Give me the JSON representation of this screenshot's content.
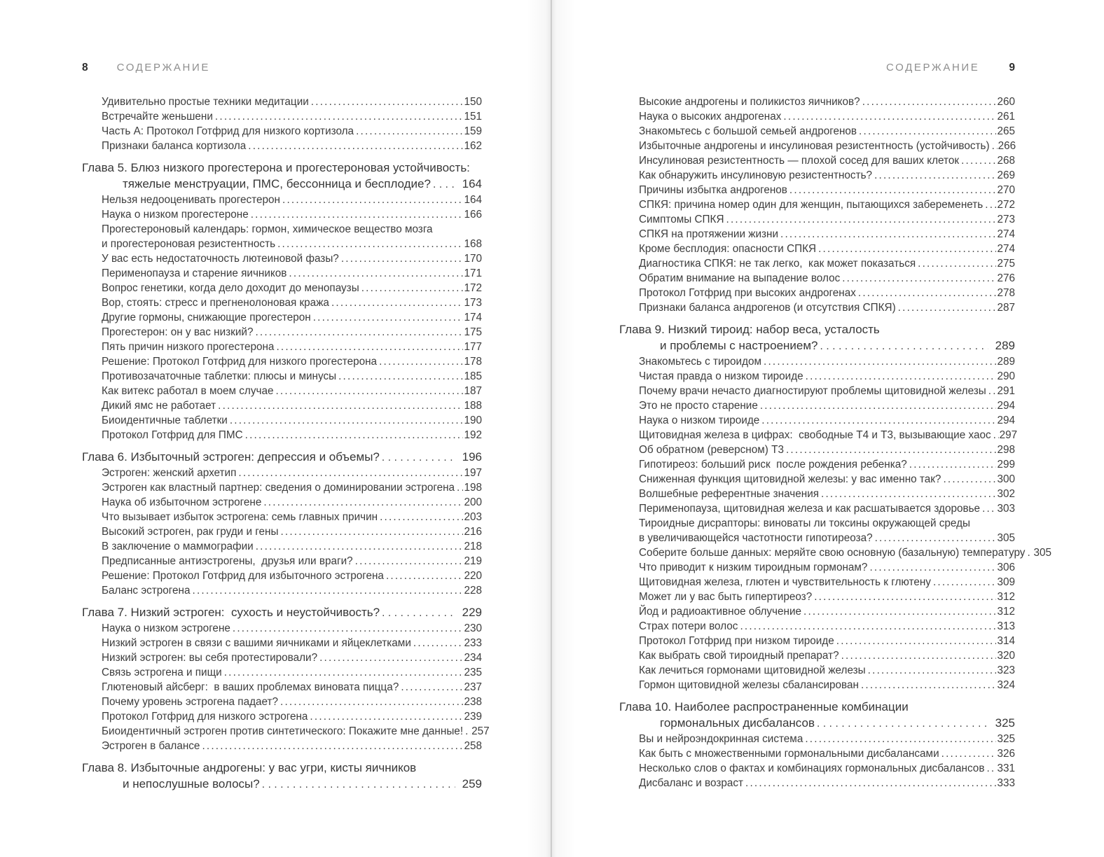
{
  "header_left": {
    "page_number": "8",
    "title": "СОДЕРЖАНИЕ"
  },
  "header_right": {
    "page_number": "9",
    "title": "СОДЕРЖАНИЕ"
  },
  "pages": [
    {
      "side": "left",
      "entries": [
        {
          "text": "Удивительно простые техники медитации",
          "page": "150",
          "style": "sub"
        },
        {
          "text": "Встречайте женьшени",
          "page": "151",
          "style": "sub"
        },
        {
          "text": "Часть А: Протокол Готфрид для низкого кортизола",
          "page": "159",
          "style": "sub"
        },
        {
          "text": "Признаки баланса кортизола",
          "page": "162",
          "style": "sub"
        },
        {
          "text": "Глава 5. Блюз низкого прогестерона и прогестероновая устойчивость:",
          "page": "",
          "style": "chapter"
        },
        {
          "text": "тяжелые менструации, ПМС, бессонница и бесплодие?",
          "page": "164",
          "style": "chaptercont"
        },
        {
          "text": "Нельзя недооценивать прогестерон",
          "page": "164",
          "style": "sub"
        },
        {
          "text": "Наука о низком прогестероне",
          "page": "166",
          "style": "sub"
        },
        {
          "text": "Прогестероновый календарь: гормон, химическое вещество мозга",
          "page": "",
          "style": "wrap"
        },
        {
          "text": "и прогестероновая резистентность",
          "page": "168",
          "style": "subcont"
        },
        {
          "text": "У вас есть недостаточность лютеиновой фазы?",
          "page": "170",
          "style": "sub"
        },
        {
          "text": "Перименопауза и старение яичников",
          "page": "171",
          "style": "sub"
        },
        {
          "text": "Вопрос генетики, когда дело доходит до менопаузы",
          "page": "172",
          "style": "sub"
        },
        {
          "text": "Вор, стоять: стресс и прегненолоновая кража",
          "page": "173",
          "style": "sub"
        },
        {
          "text": "Другие гормоны, снижающие прогестерон",
          "page": "174",
          "style": "sub"
        },
        {
          "text": "Прогестерон: он у вас низкий?",
          "page": "175",
          "style": "sub"
        },
        {
          "text": "Пять причин низкого прогестерона",
          "page": "177",
          "style": "sub"
        },
        {
          "text": "Решение: Протокол Готфрид для низкого прогестерона",
          "page": "178",
          "style": "sub"
        },
        {
          "text": "Противозачаточные таблетки: плюсы и минусы",
          "page": "185",
          "style": "sub"
        },
        {
          "text": "Как витекс работал в моем случае",
          "page": "187",
          "style": "sub"
        },
        {
          "text": "Дикий ямс не работает",
          "page": "188",
          "style": "sub"
        },
        {
          "text": "Биоидентичные таблетки",
          "page": "190",
          "style": "sub"
        },
        {
          "text": "Протокол Готфрид для ПМС",
          "page": "192",
          "style": "sub"
        },
        {
          "text": "Глава 6. Избыточный эстроген: депрессия и объемы?",
          "page": "196",
          "style": "chapterp"
        },
        {
          "text": "Эстроген: женский архетип",
          "page": "197",
          "style": "sub"
        },
        {
          "text": "Эстроген как властный партнер: сведения о доминировании эстрогена",
          "page": "198",
          "style": "sub"
        },
        {
          "text": "Наука об избыточном эстрогене",
          "page": "200",
          "style": "sub"
        },
        {
          "text": "Что вызывает избыток эстрогена: семь главных причин",
          "page": "203",
          "style": "sub"
        },
        {
          "text": "Высокий эстроген, рак груди и гены",
          "page": "216",
          "style": "sub"
        },
        {
          "text": "В заключение о маммографии",
          "page": "218",
          "style": "sub"
        },
        {
          "text": "Предписанные антиэстрогены,  друзья или враги?",
          "page": "219",
          "style": "sub"
        },
        {
          "text": "Решение: Протокол Готфрид для избыточного эстрогена",
          "page": "220",
          "style": "sub"
        },
        {
          "text": "Баланс эстрогена",
          "page": "228",
          "style": "sub"
        },
        {
          "text": "Глава 7. Низкий эстроген:  сухость и неустойчивость?",
          "page": "229",
          "style": "chapterp"
        },
        {
          "text": "Наука о низком эстрогене",
          "page": "230",
          "style": "sub"
        },
        {
          "text": "Низкий эстроген в связи с вашими яичниками и яйцеклетками",
          "page": "233",
          "style": "sub"
        },
        {
          "text": "Низкий эстроген: вы себя протестировали?",
          "page": "234",
          "style": "sub"
        },
        {
          "text": "Связь эстрогена и пищи",
          "page": "235",
          "style": "sub"
        },
        {
          "text": "Глютеновый айсберг:  в ваших проблемах виновата пицца?",
          "page": "237",
          "style": "sub"
        },
        {
          "text": "Почему уровень эстрогена падает?",
          "page": "238",
          "style": "sub"
        },
        {
          "text": "Протокол Готфрид для низкого эстрогена",
          "page": "239",
          "style": "sub"
        },
        {
          "text": "Биоидентичный эстроген против синтетического: Покажите мне данные!",
          "page": "257",
          "style": "sub"
        },
        {
          "text": "Эстроген в балансе",
          "page": "258",
          "style": "sub"
        },
        {
          "text": "Глава 8. Избыточные андрогены: у вас угри, кисты яичников",
          "page": "",
          "style": "chapter"
        },
        {
          "text": "и непослушные волосы?",
          "page": "259",
          "style": "chaptercont"
        }
      ]
    },
    {
      "side": "right",
      "entries": [
        {
          "text": "Высокие андрогены и поликистоз яичников?",
          "page": "260",
          "style": "sub"
        },
        {
          "text": "Наука о высоких андрогенах",
          "page": "261",
          "style": "sub"
        },
        {
          "text": "Знакомьтесь с большой семьей андрогенов",
          "page": "265",
          "style": "sub"
        },
        {
          "text": "Избыточные андрогены и инсулиновая резистентность (устойчивость)",
          "page": "266",
          "style": "sub"
        },
        {
          "text": "Инсулиновая резистентность — плохой сосед для ваших клеток",
          "page": "268",
          "style": "sub"
        },
        {
          "text": "Как обнаружить инсулиновую резистентность?",
          "page": "269",
          "style": "sub"
        },
        {
          "text": "Причины избытка андрогенов",
          "page": "270",
          "style": "sub"
        },
        {
          "text": "СПКЯ: причина номер один для женщин, пытающихся забеременеть",
          "page": "272",
          "style": "sub"
        },
        {
          "text": "Симптомы СПКЯ",
          "page": "273",
          "style": "sub"
        },
        {
          "text": "СПКЯ на протяжении жизни",
          "page": "274",
          "style": "sub"
        },
        {
          "text": "Кроме бесплодия: опасности СПКЯ",
          "page": "274",
          "style": "sub"
        },
        {
          "text": "Диагностика СПКЯ: не так легко,  как может показаться",
          "page": "275",
          "style": "sub"
        },
        {
          "text": "Обратим внимание на выпадение волос",
          "page": "276",
          "style": "sub"
        },
        {
          "text": "Протокол Готфрид при высоких андрогенах",
          "page": "278",
          "style": "sub"
        },
        {
          "text": "Признаки баланса андрогенов (и отсутствия СПКЯ)",
          "page": "287",
          "style": "sub"
        },
        {
          "text": "Глава 9. Низкий тироид: набор веса, усталость",
          "page": "",
          "style": "chapter"
        },
        {
          "text": "и проблемы с настроением?",
          "page": "289",
          "style": "chaptercont"
        },
        {
          "text": "Знакомьтесь с тироидом",
          "page": "289",
          "style": "sub"
        },
        {
          "text": "Чистая правда о низком тироиде",
          "page": "290",
          "style": "sub"
        },
        {
          "text": "Почему врачи нечасто диагностируют проблемы щитовидной железы",
          "page": "291",
          "style": "sub"
        },
        {
          "text": "Это не просто старение",
          "page": "294",
          "style": "sub"
        },
        {
          "text": "Наука о низком тироиде",
          "page": "294",
          "style": "sub"
        },
        {
          "text": "Щитовидная железа в цифрах:  свободные Т4 и Т3, вызывающие хаос",
          "page": "297",
          "style": "sub"
        },
        {
          "text": "Об обратном (реверсном) Т3",
          "page": "298",
          "style": "sub"
        },
        {
          "text": "Гипотиреоз: больший риск  после рождения ребенка?",
          "page": "299",
          "style": "sub"
        },
        {
          "text": "Сниженная функция щитовидной железы: у вас именно так?",
          "page": "300",
          "style": "sub"
        },
        {
          "text": "Волшебные референтные значения",
          "page": "302",
          "style": "sub"
        },
        {
          "text": "Перименопауза, щитовидная железа и как расшатывается здоровье",
          "page": "303",
          "style": "sub"
        },
        {
          "text": "Тироидные дисрапторы: виноваты ли токсины окружающей среды",
          "page": "",
          "style": "wrap"
        },
        {
          "text": "в увеличивающейся частотности гипотиреоза?",
          "page": "305",
          "style": "subcont"
        },
        {
          "text": "Соберите больше данных: меряйте свою основную (базальную) температуру",
          "page": "305",
          "style": "sub"
        },
        {
          "text": "Что приводит к низким тироидным гормонам?",
          "page": "306",
          "style": "sub"
        },
        {
          "text": "Щитовидная железа, глютен и чувствительность к глютену",
          "page": "309",
          "style": "sub"
        },
        {
          "text": "Может ли у вас быть гипертиреоз?",
          "page": "312",
          "style": "sub"
        },
        {
          "text": "Йод и радиоактивное облучение",
          "page": "312",
          "style": "sub"
        },
        {
          "text": "Страх потери волос",
          "page": "313",
          "style": "sub"
        },
        {
          "text": "Протокол Готфрид при низком тироиде",
          "page": "314",
          "style": "sub"
        },
        {
          "text": "Как выбрать свой тироидный препарат?",
          "page": "320",
          "style": "sub"
        },
        {
          "text": "Как лечиться гормонами щитовидной железы",
          "page": "323",
          "style": "sub"
        },
        {
          "text": "Гормон щитовидной железы сбалансирован",
          "page": "324",
          "style": "sub"
        },
        {
          "text": "Глава 10. Наиболее распространенные комбинации",
          "page": "",
          "style": "chapter"
        },
        {
          "text": "гормональных дисбалансов",
          "page": "325",
          "style": "chaptercont"
        },
        {
          "text": "Вы и нейроэндокринная система",
          "page": "325",
          "style": "sub"
        },
        {
          "text": "Как быть с множественными гормональными дисбалансами",
          "page": "326",
          "style": "sub"
        },
        {
          "text": "Несколько слов о фактах и комбинациях гормональных дисбалансов",
          "page": "331",
          "style": "sub"
        },
        {
          "text": "Дисбаланс и возраст",
          "page": "333",
          "style": "sub"
        }
      ]
    }
  ]
}
